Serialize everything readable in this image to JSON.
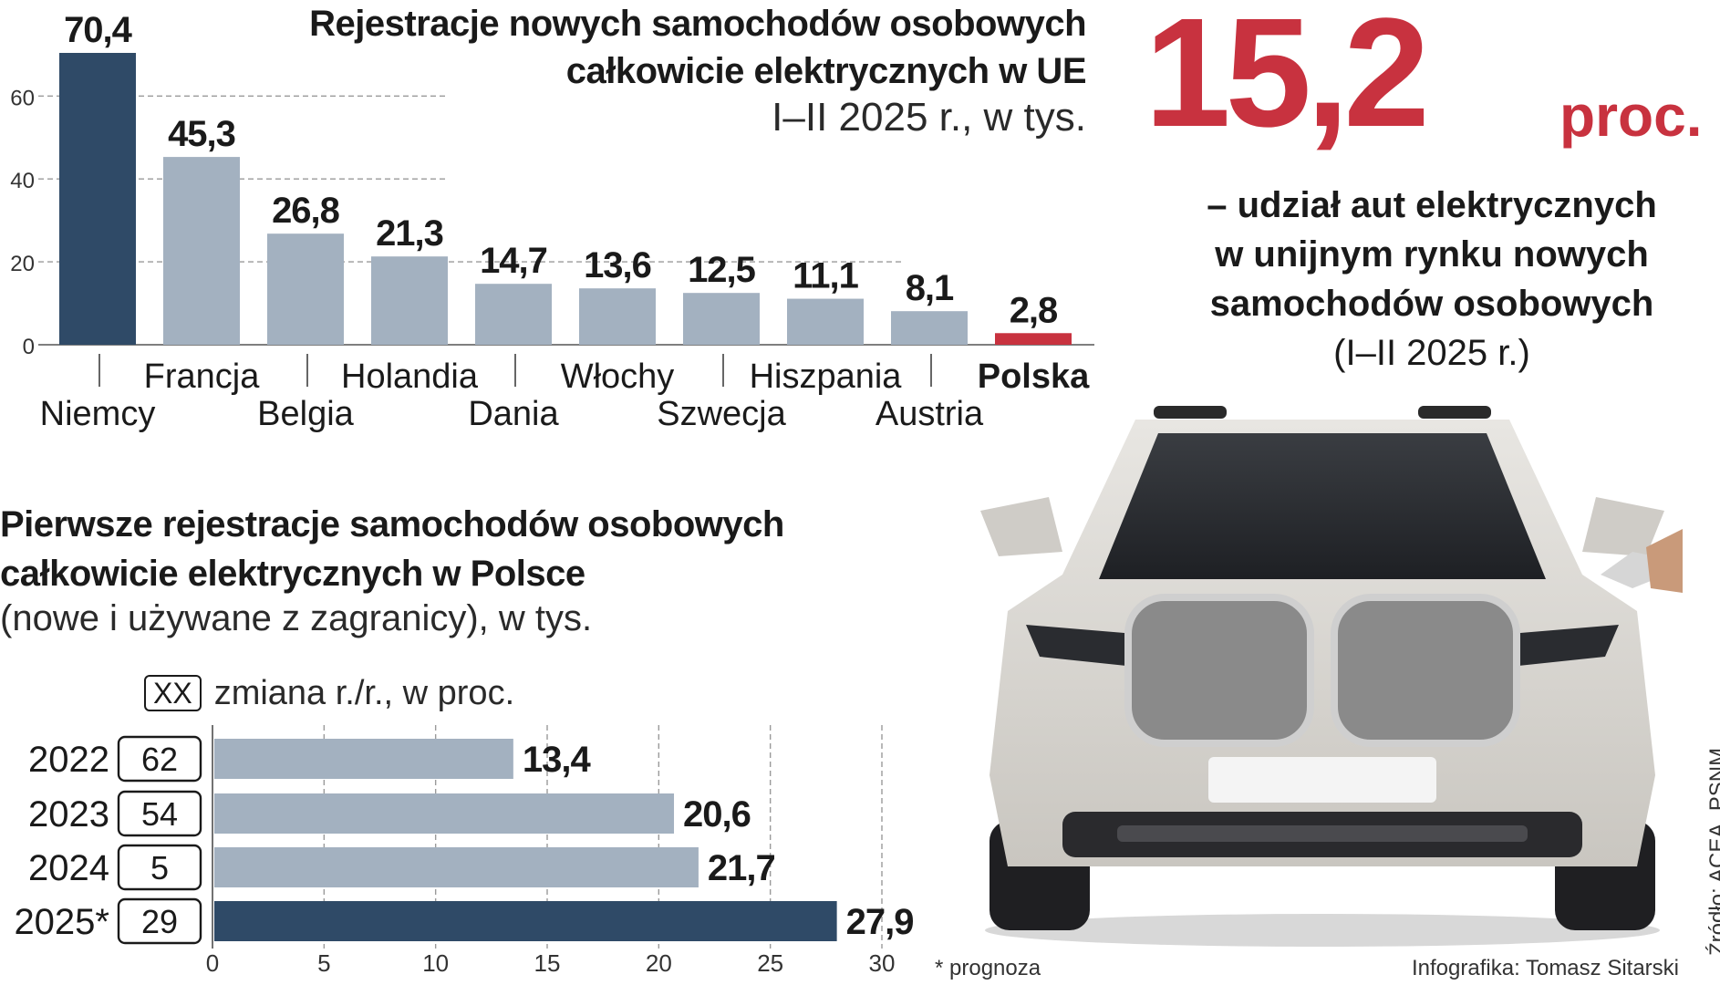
{
  "top_title": [
    "Rejestracje nowych samochodów osobowych",
    "całkowicie elektrycznych w UE"
  ],
  "top_subtitle": "I–II 2025 r., w tys.",
  "share": {
    "value": "15,2",
    "unit": "proc.",
    "lines": [
      "– udział aut elektrycznych",
      "w unijnym rynku nowych",
      "samochodów osobowych"
    ],
    "period": "(I–II 2025 r.)"
  },
  "bottom_title": [
    "Pierwsze rejestracje samochodów osobowych",
    "całkowicie elektrycznych w Polsce"
  ],
  "bottom_subtitle": "(nowe i używane z zagranicy), w tys.",
  "legend": {
    "box": "XX",
    "text": "zmiana r./r., w proc."
  },
  "footnote": "* prognoza",
  "source": "Źródło: ACEA, PSNM",
  "credit": "Infografika: Tomasz Sitarski",
  "colors": {
    "dark": "#2f4a67",
    "light": "#a3b1c0",
    "red": "#c8323f"
  },
  "chart_data": [
    {
      "type": "bar",
      "categories": [
        "Niemcy",
        "Francja",
        "Belgia",
        "Holandia",
        "Dania",
        "Włochy",
        "Szwecja",
        "Hiszpania",
        "Austria",
        "Polska"
      ],
      "values": [
        70.4,
        45.3,
        26.8,
        21.3,
        14.7,
        13.6,
        12.5,
        11.1,
        8.1,
        2.8
      ],
      "value_labels": [
        "70,4",
        "45,3",
        "26,8",
        "21,3",
        "14,7",
        "13,6",
        "12,5",
        "11,1",
        "8,1",
        "2,8"
      ],
      "yticks": [
        "0",
        "20",
        "40",
        "60"
      ],
      "ylim": [
        0,
        70.4
      ],
      "grid": true
    },
    {
      "type": "bar",
      "orientation": "horizontal",
      "categories": [
        "2022",
        "2023",
        "2024",
        "2025*"
      ],
      "values": [
        13.4,
        20.6,
        21.7,
        27.9
      ],
      "value_labels": [
        "13,4",
        "20,6",
        "21,7",
        "27,9"
      ],
      "yoy_change": [
        "62",
        "54",
        "5",
        "29"
      ],
      "xticks": [
        "0",
        "5",
        "10",
        "15",
        "20",
        "25",
        "30"
      ],
      "xlim": [
        0,
        30
      ],
      "grid": true
    }
  ]
}
